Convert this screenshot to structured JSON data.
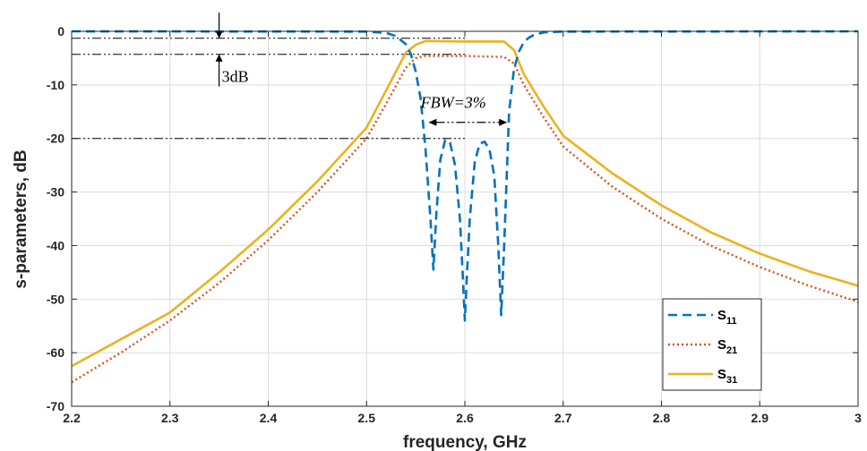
{
  "chart_data": {
    "type": "line",
    "title": "",
    "xlabel": "frequency, GHz",
    "ylabel": "s-parameters, dB",
    "xlim": [
      2.2,
      3.0
    ],
    "ylim": [
      -70,
      0
    ],
    "xticks": [
      "2.2",
      "2.3",
      "2.4",
      "2.5",
      "2.6",
      "2.7",
      "2.8",
      "2.9",
      "3"
    ],
    "yticks": [
      "0",
      "-10",
      "-20",
      "-30",
      "-40",
      "-50",
      "-60",
      "-70"
    ],
    "grid": true,
    "legend_position": "bottom-right",
    "series": [
      {
        "name": "S11",
        "label_main": "S",
        "label_sub": "11",
        "color": "#0072BD",
        "style": "dashed",
        "x": [
          2.2,
          2.5,
          2.52,
          2.53,
          2.54,
          2.545,
          2.55,
          2.555,
          2.56,
          2.565,
          2.568,
          2.571,
          2.575,
          2.58,
          2.585,
          2.59,
          2.595,
          2.598,
          2.6,
          2.602,
          2.605,
          2.61,
          2.615,
          2.62,
          2.625,
          2.63,
          2.634,
          2.637,
          2.64,
          2.645,
          2.65,
          2.655,
          2.66,
          2.665,
          2.67,
          2.68,
          2.7,
          3.0
        ],
        "y": [
          0,
          -0.05,
          -0.3,
          -0.9,
          -2.4,
          -4.2,
          -7.5,
          -12.5,
          -22,
          -35,
          -44.5,
          -34,
          -24,
          -20.3,
          -20.8,
          -25,
          -35,
          -46,
          -54,
          -46,
          -35,
          -24.5,
          -21,
          -20.6,
          -22,
          -27,
          -40,
          -53,
          -40,
          -15,
          -7,
          -3.8,
          -2,
          -1.2,
          -0.7,
          -0.2,
          -0.05,
          0
        ]
      },
      {
        "name": "S21",
        "label_main": "S",
        "label_sub": "21",
        "color": "#D95319",
        "style": "dotted",
        "x": [
          2.2,
          2.25,
          2.3,
          2.35,
          2.4,
          2.45,
          2.5,
          2.52,
          2.54,
          2.55,
          2.56,
          2.6,
          2.64,
          2.65,
          2.66,
          2.68,
          2.7,
          2.75,
          2.8,
          2.85,
          2.9,
          2.95,
          3.0
        ],
        "y": [
          -65.5,
          -60,
          -54,
          -47,
          -39,
          -30,
          -20,
          -13.5,
          -6.8,
          -5,
          -4.6,
          -4.6,
          -4.8,
          -6,
          -10,
          -16,
          -21.5,
          -29,
          -35,
          -40,
          -44,
          -47.5,
          -50.5
        ]
      },
      {
        "name": "S31",
        "label_main": "S",
        "label_sub": "31",
        "color": "#EDB120",
        "style": "solid",
        "x": [
          2.2,
          2.25,
          2.3,
          2.35,
          2.4,
          2.45,
          2.5,
          2.52,
          2.54,
          2.55,
          2.56,
          2.6,
          2.64,
          2.65,
          2.66,
          2.68,
          2.7,
          2.75,
          2.8,
          2.85,
          2.9,
          2.95,
          3.0
        ],
        "y": [
          -62.5,
          -57.5,
          -52.5,
          -45,
          -37,
          -28,
          -18,
          -11,
          -4,
          -2.5,
          -1.8,
          -1.9,
          -1.9,
          -3.5,
          -8,
          -14,
          -19.5,
          -26.5,
          -32.5,
          -37.5,
          -41.5,
          -44.8,
          -47.5
        ]
      }
    ],
    "reference_lines": [
      {
        "y": -1.3,
        "x1": 2.2,
        "x2": 2.6
      },
      {
        "y": -4.3,
        "x1": 2.2,
        "x2": 2.6
      },
      {
        "y": -20,
        "x1": 2.2,
        "x2": 2.6
      }
    ],
    "annotations": {
      "db_label": "3dB",
      "fbw_label": "FBW=3%",
      "db_arrow_x": 2.35,
      "fbw_arrow_x1": 2.563,
      "fbw_arrow_x2": 2.643,
      "fbw_arrow_y": -17
    }
  }
}
